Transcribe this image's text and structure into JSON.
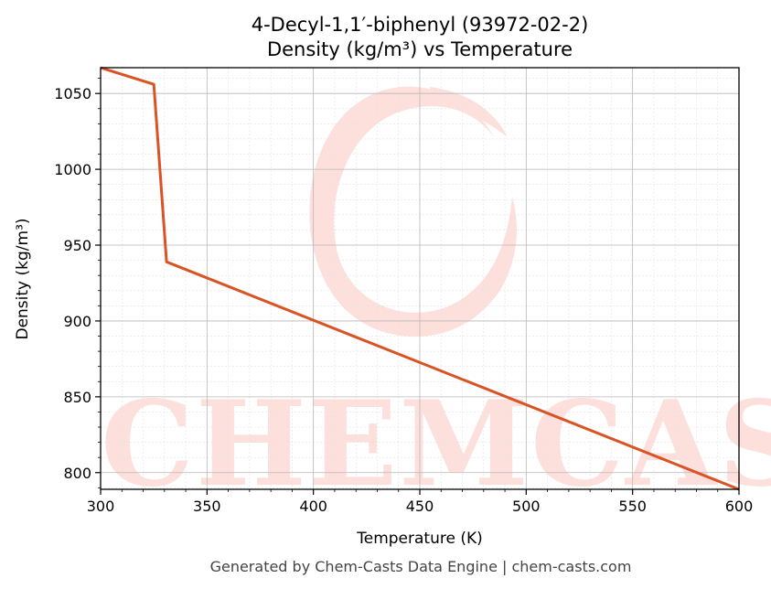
{
  "colors": {
    "line": "#d95324",
    "watermark": "#fde0dc",
    "grid_major": "#b8b8b8",
    "grid_minor": "#e3e3e3",
    "frame": "#000000",
    "footer": "#444444"
  },
  "watermark": {
    "text": "CHEMCASTS",
    "icon": "swirl-c-logo"
  },
  "footer": "Generated by Chem-Casts Data Engine | chem-casts.com",
  "chart_data": {
    "type": "line",
    "title": "4-Decyl-1,1′-biphenyl (93972-02-2)",
    "subtitle": "Density (kg/m³) vs Temperature",
    "xlabel": "Temperature (K)",
    "ylabel": "Density (kg/m³)",
    "xlim": [
      300,
      600
    ],
    "ylim": [
      789,
      1067
    ],
    "xticks": [
      300,
      350,
      400,
      450,
      500,
      550,
      600
    ],
    "yticks": [
      800,
      850,
      900,
      950,
      1000,
      1050
    ],
    "grid": true,
    "minor_grid": true,
    "series": [
      {
        "x": [
          300,
          325,
          331,
          600
        ],
        "y": [
          1067,
          1056,
          939,
          789
        ]
      }
    ]
  }
}
